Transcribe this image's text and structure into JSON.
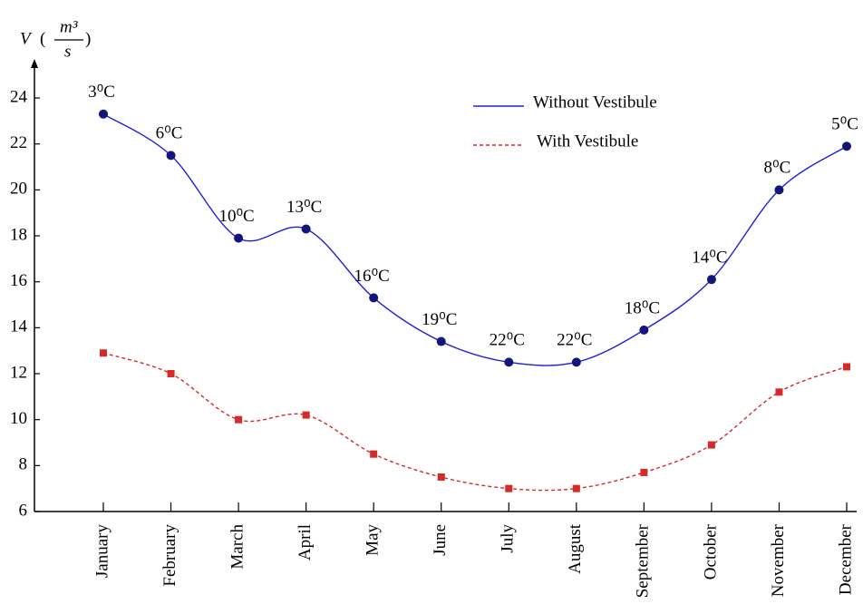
{
  "chart_data": {
    "type": "line",
    "ylabel": {
      "symbol": "V",
      "numerator": "m³",
      "denominator": "s"
    },
    "categories": [
      "January",
      "February",
      "March",
      "April",
      "May",
      "June",
      "July",
      "August",
      "September",
      "October",
      "November",
      "December"
    ],
    "annotations": [
      "3⁰C",
      "6⁰C",
      "10⁰C",
      "13⁰C",
      "16⁰C",
      "19⁰C",
      "22⁰C",
      "22⁰C",
      "18⁰C",
      "14⁰C",
      "8⁰C",
      "5⁰C"
    ],
    "series": [
      {
        "name": "Without Vestibule",
        "color": "#2020d8",
        "marker_color": "#14147a",
        "dash": false,
        "values": [
          23.3,
          21.5,
          17.9,
          18.3,
          15.3,
          13.4,
          12.5,
          12.5,
          13.9,
          16.1,
          20.0,
          21.9
        ]
      },
      {
        "name": "With Vestibule",
        "color": "#d42a2a",
        "marker_color": "#d42a2a",
        "dash": true,
        "values": [
          12.9,
          12.0,
          10.0,
          10.2,
          8.5,
          7.5,
          7.0,
          7.0,
          7.7,
          8.9,
          11.2,
          12.3
        ]
      }
    ],
    "ylim": [
      6,
      25.7
    ],
    "yticks": [
      6,
      8,
      10,
      12,
      14,
      16,
      18,
      20,
      22,
      24
    ],
    "grid": false,
    "legend": "top-right"
  }
}
